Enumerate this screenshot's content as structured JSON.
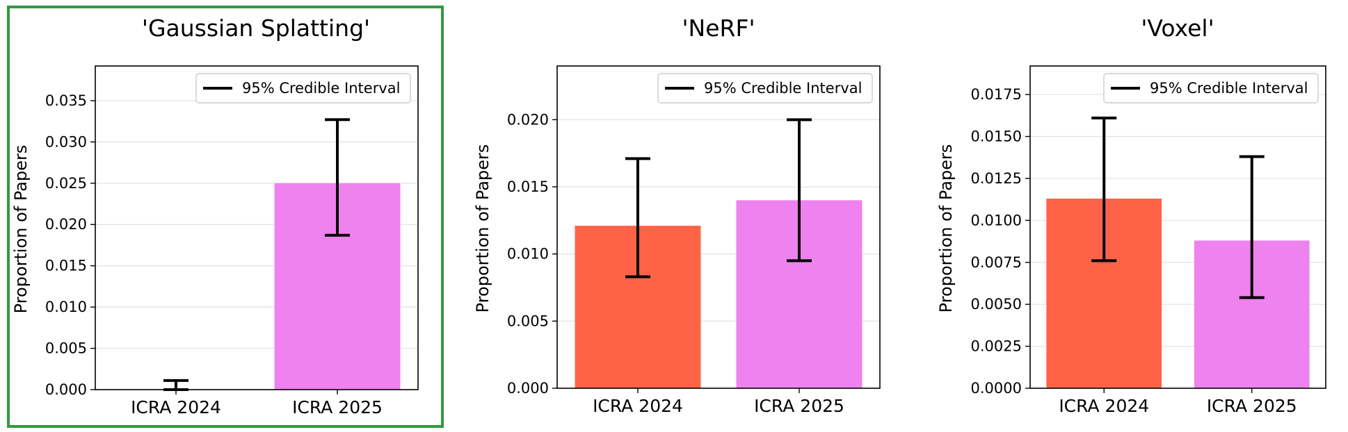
{
  "legend_label": "95% Credible Interval",
  "ylabel": "Proportion of Papers",
  "highlight_color": "#2e9b40",
  "chart_data": [
    {
      "type": "bar",
      "title": "'Gaussian Splatting'",
      "categories": [
        "ICRA 2024",
        "ICRA 2025"
      ],
      "values": [
        0.0,
        0.025
      ],
      "ci_lower": [
        0.0,
        0.0187
      ],
      "ci_upper": [
        0.0011,
        0.0327
      ],
      "colors": [
        "#ff6347",
        "#ee82ee"
      ],
      "ylim": [
        0,
        0.0392
      ],
      "yticks": [
        "0.000",
        "0.005",
        "0.010",
        "0.015",
        "0.020",
        "0.025",
        "0.030",
        "0.035"
      ],
      "ytick_values": [
        0,
        0.005,
        0.01,
        0.015,
        0.02,
        0.025,
        0.03,
        0.035
      ],
      "ylabel": "Proportion of Papers",
      "legend": "95% Credible Interval",
      "legend_position": "top-right",
      "grid": "y",
      "highlighted": true
    },
    {
      "type": "bar",
      "title": "'NeRF'",
      "categories": [
        "ICRA 2024",
        "ICRA 2025"
      ],
      "values": [
        0.0121,
        0.014
      ],
      "ci_lower": [
        0.0083,
        0.0095
      ],
      "ci_upper": [
        0.0171,
        0.02
      ],
      "colors": [
        "#ff6347",
        "#ee82ee"
      ],
      "ylim": [
        0,
        0.024
      ],
      "yticks": [
        "0.000",
        "0.005",
        "0.010",
        "0.015",
        "0.020"
      ],
      "ytick_values": [
        0,
        0.005,
        0.01,
        0.015,
        0.02
      ],
      "ylabel": "Proportion of Papers",
      "legend": "95% Credible Interval",
      "legend_position": "top-right",
      "grid": "y",
      "highlighted": false
    },
    {
      "type": "bar",
      "title": "'Voxel'",
      "categories": [
        "ICRA 2024",
        "ICRA 2025"
      ],
      "values": [
        0.0113,
        0.0088
      ],
      "ci_lower": [
        0.0076,
        0.0054
      ],
      "ci_upper": [
        0.0161,
        0.0138
      ],
      "colors": [
        "#ff6347",
        "#ee82ee"
      ],
      "ylim": [
        0,
        0.0192
      ],
      "yticks": [
        "0.0000",
        "0.0025",
        "0.0050",
        "0.0075",
        "0.0100",
        "0.0125",
        "0.0150",
        "0.0175"
      ],
      "ytick_values": [
        0,
        0.0025,
        0.005,
        0.0075,
        0.01,
        0.0125,
        0.015,
        0.0175
      ],
      "ylabel": "Proportion of Papers",
      "legend": "95% Credible Interval",
      "legend_position": "top-right",
      "grid": "y",
      "highlighted": false
    }
  ]
}
